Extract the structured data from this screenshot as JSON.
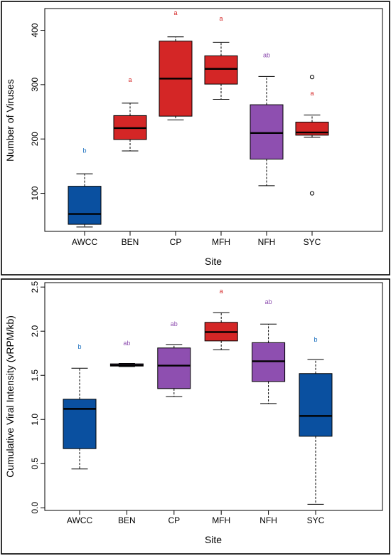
{
  "chart_data": [
    {
      "type": "box",
      "xlabel": "Site",
      "ylabel": "Number of Viruses",
      "ylim": [
        30,
        440
      ],
      "yticks": [
        100,
        200,
        300,
        400
      ],
      "yticklabels": [
        "100",
        "200",
        "300",
        "400"
      ],
      "categories": [
        "AWCC",
        "BEN",
        "CP",
        "MFH",
        "NFH",
        "SYC"
      ],
      "boxes": [
        {
          "category": "AWCC",
          "min": 38,
          "q1": 43,
          "median": 62,
          "q3": 113,
          "max": 136,
          "outliers": [],
          "color": "#0a50a0",
          "letter": "b",
          "letter_color": "#1a6fbf",
          "letter_y": 175
        },
        {
          "category": "BEN",
          "min": 178,
          "q1": 199,
          "median": 220,
          "q3": 243,
          "max": 266,
          "outliers": [],
          "color": "#d42626",
          "letter": "a",
          "letter_color": "#d42626",
          "letter_y": 305
        },
        {
          "category": "CP",
          "min": 235,
          "q1": 242,
          "median": 311,
          "q3": 380,
          "max": 388,
          "outliers": [],
          "color": "#d42626",
          "letter": "a",
          "letter_color": "#d42626",
          "letter_y": 428
        },
        {
          "category": "MFH",
          "min": 273,
          "q1": 301,
          "median": 329,
          "q3": 353,
          "max": 378,
          "outliers": [],
          "color": "#d42626",
          "letter": "a",
          "letter_color": "#d42626",
          "letter_y": 418
        },
        {
          "category": "NFH",
          "min": 114,
          "q1": 163,
          "median": 211,
          "q3": 263,
          "max": 315,
          "outliers": [],
          "color": "#8e4fb0",
          "letter": "ab",
          "letter_color": "#8e4fb0",
          "letter_y": 350
        },
        {
          "category": "SYC",
          "min": 203,
          "q1": 207,
          "median": 212,
          "q3": 231,
          "max": 244,
          "outliers": [
            314,
            100
          ],
          "color": "#d42626",
          "letter": "a",
          "letter_color": "#d42626",
          "letter_y": 280
        }
      ]
    },
    {
      "type": "box",
      "xlabel": "Site",
      "ylabel": "Cumulative Viral Intensity (vRPM/kb)",
      "ylim": [
        -0.03,
        2.55
      ],
      "yticks": [
        0.0,
        0.5,
        1.0,
        1.5,
        2.0,
        2.5
      ],
      "yticklabels": [
        "0.0",
        "0.5",
        "1.0",
        "1.5",
        "2.0",
        "2.5"
      ],
      "categories": [
        "AWCC",
        "BEN",
        "CP",
        "MFH",
        "NFH",
        "SYC"
      ],
      "boxes": [
        {
          "category": "AWCC",
          "min": 0.44,
          "q1": 0.67,
          "median": 1.12,
          "q3": 1.23,
          "max": 1.58,
          "outliers": [],
          "color": "#0a50a0",
          "letter": "b",
          "letter_color": "#1a6fbf",
          "letter_y": 1.8
        },
        {
          "category": "BEN",
          "min": 1.6,
          "q1": 1.605,
          "median": 1.615,
          "q3": 1.63,
          "max": 1.635,
          "outliers": [],
          "color": "#8e4fb0",
          "letter": "ab",
          "letter_color": "#8e4fb0",
          "letter_y": 1.84
        },
        {
          "category": "CP",
          "min": 1.26,
          "q1": 1.35,
          "median": 1.61,
          "q3": 1.81,
          "max": 1.85,
          "outliers": [],
          "color": "#8e4fb0",
          "letter": "ab",
          "letter_color": "#8e4fb0",
          "letter_y": 2.06
        },
        {
          "category": "MFH",
          "min": 1.79,
          "q1": 1.89,
          "median": 1.99,
          "q3": 2.1,
          "max": 2.21,
          "outliers": [],
          "color": "#d42626",
          "letter": "a",
          "letter_color": "#d42626",
          "letter_y": 2.43
        },
        {
          "category": "NFH",
          "min": 1.18,
          "q1": 1.43,
          "median": 1.66,
          "q3": 1.87,
          "max": 2.08,
          "outliers": [],
          "color": "#8e4fb0",
          "letter": "ab",
          "letter_color": "#8e4fb0",
          "letter_y": 2.31
        },
        {
          "category": "SYC",
          "min": 0.04,
          "q1": 0.81,
          "median": 1.04,
          "q3": 1.52,
          "max": 1.68,
          "outliers": [],
          "color": "#0a50a0",
          "letter": "b",
          "letter_color": "#1a6fbf",
          "letter_y": 1.88
        }
      ]
    }
  ]
}
